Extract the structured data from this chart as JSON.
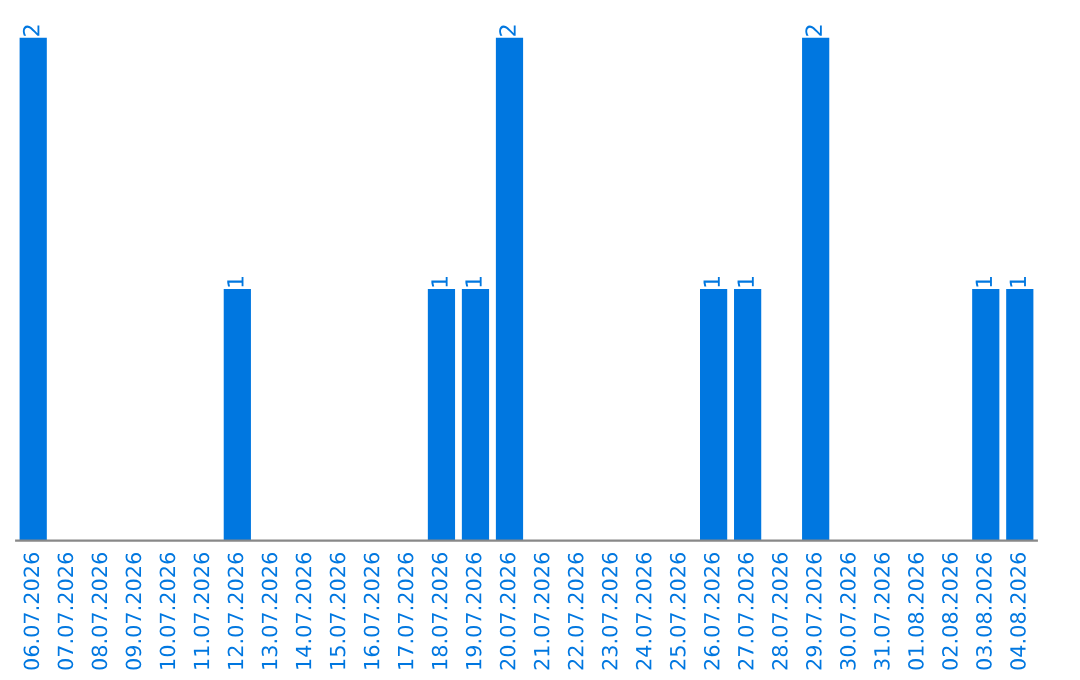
{
  "chart_data": {
    "type": "bar",
    "categories": [
      "06.07.2026",
      "07.07.2026",
      "08.07.2026",
      "09.07.2026",
      "10.07.2026",
      "11.07.2026",
      "12.07.2026",
      "13.07.2026",
      "14.07.2026",
      "15.07.2026",
      "16.07.2026",
      "17.07.2026",
      "18.07.2026",
      "19.07.2026",
      "20.07.2026",
      "21.07.2026",
      "22.07.2026",
      "23.07.2026",
      "24.07.2026",
      "25.07.2026",
      "26.07.2026",
      "27.07.2026",
      "28.07.2026",
      "29.07.2026",
      "30.07.2026",
      "31.07.2026",
      "01.08.2026",
      "02.08.2026",
      "03.08.2026",
      "04.08.2026"
    ],
    "values": [
      2,
      0,
      0,
      0,
      0,
      0,
      1,
      0,
      0,
      0,
      0,
      0,
      1,
      1,
      2,
      0,
      0,
      0,
      0,
      0,
      1,
      1,
      0,
      2,
      0,
      0,
      0,
      0,
      1,
      1
    ],
    "value_labels": [
      "2",
      null,
      null,
      null,
      null,
      null,
      "1",
      null,
      null,
      null,
      null,
      null,
      "1",
      "1",
      "2",
      null,
      null,
      null,
      null,
      null,
      "1",
      "1",
      null,
      "2",
      null,
      null,
      null,
      null,
      "1",
      "1"
    ],
    "color": "#0077e0"
  }
}
